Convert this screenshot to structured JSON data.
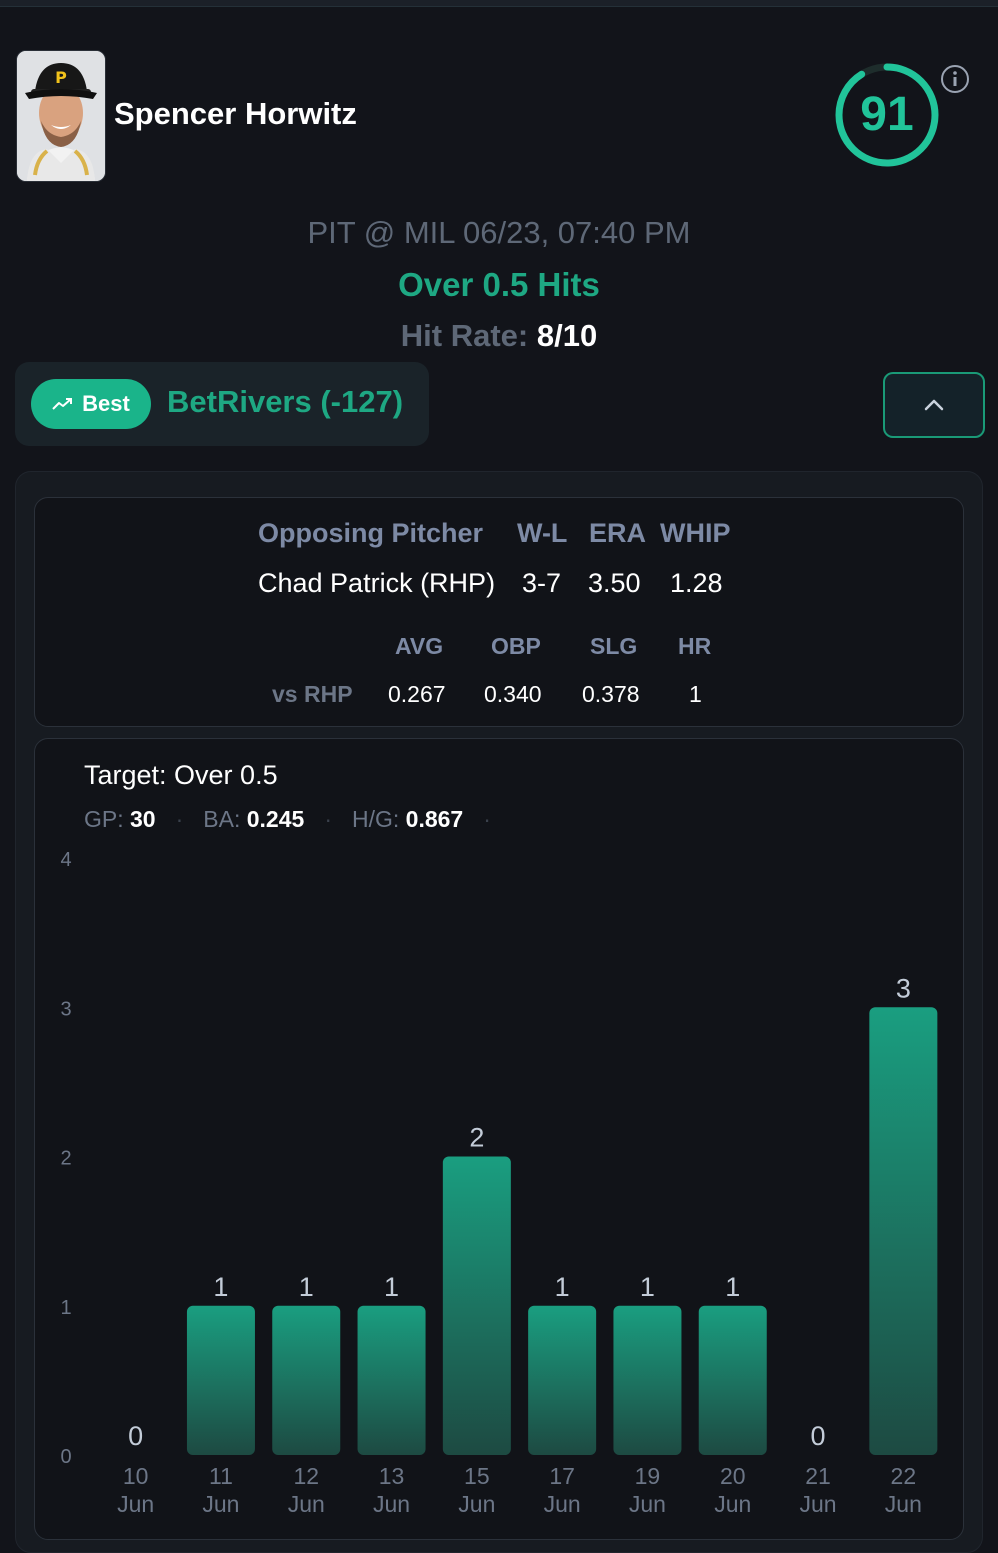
{
  "player": {
    "name": "Spencer Horwitz",
    "avatar_icon": "player-headshot",
    "cap_letter": "P"
  },
  "score": {
    "value": "91",
    "fraction": 0.91,
    "color": "#21c49a",
    "info_icon": "info-icon"
  },
  "game": {
    "matchup": "PIT @ MIL 06/23, 07:40 PM",
    "prop": "Over 0.5 Hits",
    "hit_rate_label": "Hit Rate:",
    "hit_rate_value": "8/10"
  },
  "best": {
    "badge_label": "Best",
    "badge_icon": "trending-up-icon",
    "book": "BetRivers (-127)",
    "collapse_icon": "chevron-up-icon"
  },
  "pitcher": {
    "headers": [
      "Opposing Pitcher",
      "W-L",
      "ERA",
      "WHIP"
    ],
    "name": "Chad Patrick (RHP)",
    "wl": "3-7",
    "era": "3.50",
    "whip": "1.28",
    "split_headers": [
      "AVG",
      "OBP",
      "SLG",
      "HR"
    ],
    "split_label": "vs RHP",
    "split_values": [
      "0.267",
      "0.340",
      "0.378",
      "1"
    ]
  },
  "summary": {
    "target": "Target: Over 0.5",
    "gp_label": "GP:",
    "gp_value": "30",
    "ba_label": "BA:",
    "ba_value": "0.245",
    "hg_label": "H/G:",
    "hg_value": "0.867"
  },
  "chart_data": {
    "type": "bar",
    "categories": [
      [
        "10",
        "Jun"
      ],
      [
        "11",
        "Jun"
      ],
      [
        "12",
        "Jun"
      ],
      [
        "13",
        "Jun"
      ],
      [
        "15",
        "Jun"
      ],
      [
        "17",
        "Jun"
      ],
      [
        "19",
        "Jun"
      ],
      [
        "20",
        "Jun"
      ],
      [
        "21",
        "Jun"
      ],
      [
        "22",
        "Jun"
      ]
    ],
    "values": [
      0,
      1,
      1,
      1,
      2,
      1,
      1,
      1,
      0,
      3
    ],
    "yticks": [
      0,
      1,
      2,
      3,
      4
    ],
    "ylim": [
      0,
      4
    ],
    "bar_color_top": "#1a9e80",
    "bar_color_bottom": "#1d4a42",
    "grid": false
  }
}
